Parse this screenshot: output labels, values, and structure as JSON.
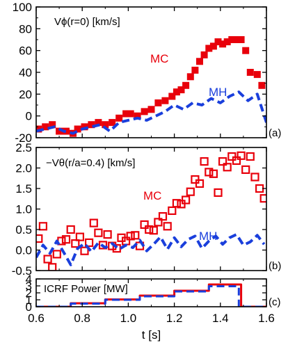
{
  "colors": {
    "mc": "#e8000b",
    "mh": "#1a3fdc",
    "axis": "#000000"
  },
  "xaxis": {
    "label": "t [s]",
    "ticks": [
      "0.6",
      "0.8",
      "1.0",
      "1.2",
      "1.4",
      "1.6"
    ],
    "range": [
      0.6,
      1.6
    ]
  },
  "chart_data": [
    {
      "type": "scatter",
      "panel_label": "(a)",
      "annotation": "Vϕ(r=0) [km/s]",
      "ylim": [
        -20,
        100
      ],
      "yticks": [
        "-20",
        "0",
        "20",
        "40",
        "60",
        "80",
        "100"
      ],
      "series": [
        {
          "name": "MC",
          "style": "filled-square",
          "color": "#e8000b",
          "x": [
            0.61,
            0.64,
            0.67,
            0.7,
            0.73,
            0.76,
            0.78,
            0.81,
            0.84,
            0.87,
            0.9,
            0.93,
            0.96,
            0.99,
            1.01,
            1.04,
            1.07,
            1.1,
            1.13,
            1.16,
            1.19,
            1.21,
            1.23,
            1.25,
            1.27,
            1.29,
            1.31,
            1.33,
            1.35,
            1.37,
            1.39,
            1.41,
            1.43,
            1.45,
            1.47,
            1.49,
            1.51,
            1.53,
            1.56,
            1.58
          ],
          "y": [
            -12,
            -10,
            -8,
            -14,
            -14,
            -16,
            -12,
            -10,
            -8,
            -6,
            -8,
            -6,
            -2,
            2,
            2,
            0,
            4,
            6,
            12,
            14,
            18,
            22,
            24,
            28,
            36,
            42,
            50,
            56,
            62,
            64,
            68,
            66,
            68,
            70,
            70,
            70,
            60,
            40,
            38,
            28
          ]
        },
        {
          "name": "MH",
          "style": "dashed-line",
          "color": "#1a3fdc",
          "x": [
            0.6,
            0.64,
            0.68,
            0.72,
            0.76,
            0.8,
            0.84,
            0.88,
            0.92,
            0.96,
            1.0,
            1.04,
            1.08,
            1.12,
            1.16,
            1.2,
            1.24,
            1.28,
            1.32,
            1.36,
            1.4,
            1.44,
            1.48,
            1.52,
            1.56,
            1.6
          ],
          "y": [
            -14,
            -12,
            -10,
            -14,
            -16,
            -12,
            -10,
            -8,
            -14,
            -6,
            -4,
            -2,
            -4,
            0,
            4,
            10,
            6,
            12,
            10,
            16,
            12,
            18,
            22,
            14,
            20,
            -6
          ]
        }
      ]
    },
    {
      "type": "scatter",
      "panel_label": "(b)",
      "annotation": "−Vθ(r/a=0.4) [km/s]",
      "ylim": [
        -0.5,
        2.5
      ],
      "yticks": [
        "-0.5",
        "0.0",
        "0.5",
        "1.0",
        "1.5",
        "2.0",
        "2.5"
      ],
      "series": [
        {
          "name": "MC",
          "style": "open-square",
          "color": "#e8000b",
          "x": [
            0.61,
            0.63,
            0.65,
            0.67,
            0.69,
            0.71,
            0.73,
            0.75,
            0.77,
            0.79,
            0.81,
            0.83,
            0.85,
            0.87,
            0.89,
            0.91,
            0.93,
            0.95,
            0.97,
            0.99,
            1.01,
            1.03,
            1.05,
            1.07,
            1.09,
            1.11,
            1.13,
            1.15,
            1.17,
            1.19,
            1.21,
            1.23,
            1.25,
            1.27,
            1.29,
            1.31,
            1.33,
            1.35,
            1.37,
            1.39,
            1.41,
            1.43,
            1.45,
            1.47,
            1.49,
            1.51,
            1.53,
            1.55,
            1.57,
            1.59
          ],
          "y": [
            0.28,
            0.58,
            -0.22,
            -0.42,
            -0.1,
            0.22,
            0.26,
            0.5,
            0.16,
            0.32,
            -0.02,
            0.18,
            0.66,
            0.42,
            0.12,
            0.38,
            0.1,
            0.04,
            0.3,
            0.22,
            0.34,
            0.36,
            0.1,
            0.62,
            0.5,
            0.48,
            0.68,
            0.82,
            0.58,
            0.96,
            1.14,
            1.12,
            1.22,
            1.42,
            1.72,
            1.62,
            2.16,
            1.9,
            1.86,
            1.4,
            2.16,
            2.02,
            2.28,
            2.18,
            2.3,
            1.96,
            2.28,
            1.78,
            1.5,
            1.26
          ]
        },
        {
          "name": "MH",
          "style": "dashed-line",
          "color": "#1a3fdc",
          "x": [
            0.6,
            0.63,
            0.66,
            0.69,
            0.72,
            0.75,
            0.78,
            0.81,
            0.84,
            0.87,
            0.9,
            0.93,
            0.96,
            0.99,
            1.02,
            1.05,
            1.08,
            1.11,
            1.14,
            1.17,
            1.2,
            1.23,
            1.26,
            1.29,
            1.32,
            1.35,
            1.38,
            1.41,
            1.44,
            1.47,
            1.5,
            1.53,
            1.56,
            1.59
          ],
          "y": [
            -0.18,
            0.12,
            -0.08,
            0.22,
            -0.06,
            -0.36,
            0.04,
            0.16,
            -0.04,
            0.18,
            0.06,
            0.16,
            0.02,
            0.12,
            0.06,
            0.24,
            -0.02,
            0.14,
            0.32,
            0.02,
            0.3,
            0.08,
            0.26,
            0.34,
            0.04,
            0.22,
            0.34,
            0.14,
            0.3,
            0.38,
            0.12,
            0.2,
            0.36,
            0.14
          ]
        }
      ]
    },
    {
      "type": "line",
      "panel_label": "(c)",
      "annotation": "ICRF Power [MW]",
      "ylim": [
        0,
        4
      ],
      "yticks": [
        "0",
        "1",
        "2",
        "3",
        "4"
      ],
      "series": [
        {
          "name": "MC",
          "style": "solid-step",
          "color": "#e8000b",
          "x": [
            0.6,
            0.75,
            0.75,
            0.9,
            0.9,
            1.05,
            1.05,
            1.2,
            1.2,
            1.35,
            1.35,
            1.49,
            1.49,
            1.6
          ],
          "y": [
            0,
            0,
            0.5,
            0.5,
            1.05,
            1.05,
            1.6,
            1.6,
            2.3,
            2.3,
            3.2,
            3.2,
            0,
            0
          ]
        },
        {
          "name": "MH",
          "style": "dashed-step",
          "color": "#1a3fdc",
          "x": [
            0.6,
            0.75,
            0.75,
            0.9,
            0.9,
            1.05,
            1.05,
            1.2,
            1.2,
            1.35,
            1.35,
            1.48,
            1.48,
            1.6
          ],
          "y": [
            0,
            0,
            0.45,
            0.45,
            1.0,
            1.0,
            1.5,
            1.5,
            2.2,
            2.2,
            2.95,
            2.95,
            0,
            0
          ]
        }
      ]
    }
  ]
}
